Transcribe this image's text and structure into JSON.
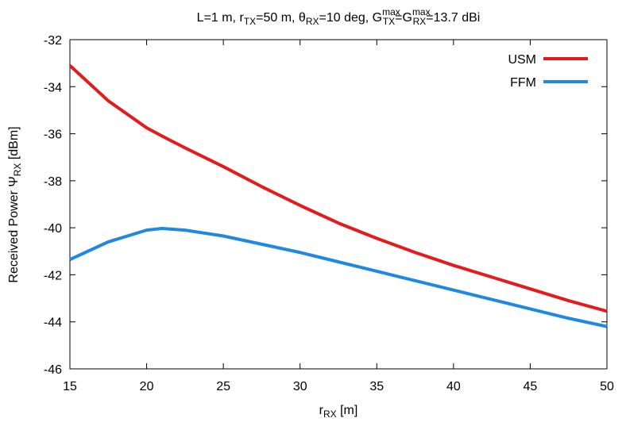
{
  "chart_data": {
    "type": "line",
    "title": [
      "L=1 m, r",
      "TX",
      "=50 m, θ",
      "RX",
      "=10 deg, G",
      "max",
      "TX",
      "=G",
      "max",
      "RX",
      "=13.7 dBi"
    ],
    "x_label": [
      "r",
      "RX",
      " [m]"
    ],
    "y_label": [
      "Received Power Ψ",
      "RX",
      " [dBm]"
    ],
    "x": [
      15,
      17.5,
      20,
      21,
      22.5,
      25,
      27.5,
      30,
      32.5,
      35,
      37.5,
      40,
      42.5,
      45,
      47.5,
      50
    ],
    "series": [
      {
        "name": "USM",
        "color": "#e41a1c",
        "values": [
          -33.1,
          -34.6,
          -35.75,
          -36.1,
          -36.6,
          -37.4,
          -38.25,
          -39.05,
          -39.8,
          -40.45,
          -41.05,
          -41.6,
          -42.1,
          -42.6,
          -43.1,
          -43.55
        ]
      },
      {
        "name": "FFM",
        "color": "#1e88e5",
        "values": [
          -41.35,
          -40.6,
          -40.1,
          -40.03,
          -40.1,
          -40.35,
          -40.7,
          -41.05,
          -41.45,
          -41.85,
          -42.25,
          -42.65,
          -43.05,
          -43.45,
          -43.85,
          -44.2
        ]
      }
    ],
    "xlim": [
      15,
      50
    ],
    "xticks": [
      15,
      20,
      25,
      30,
      35,
      40,
      45,
      50
    ],
    "ylim": [
      -46,
      -32
    ],
    "yticks": [
      -46,
      -44,
      -42,
      -40,
      -38,
      -36,
      -34,
      -32
    ],
    "legend": "top-right"
  }
}
